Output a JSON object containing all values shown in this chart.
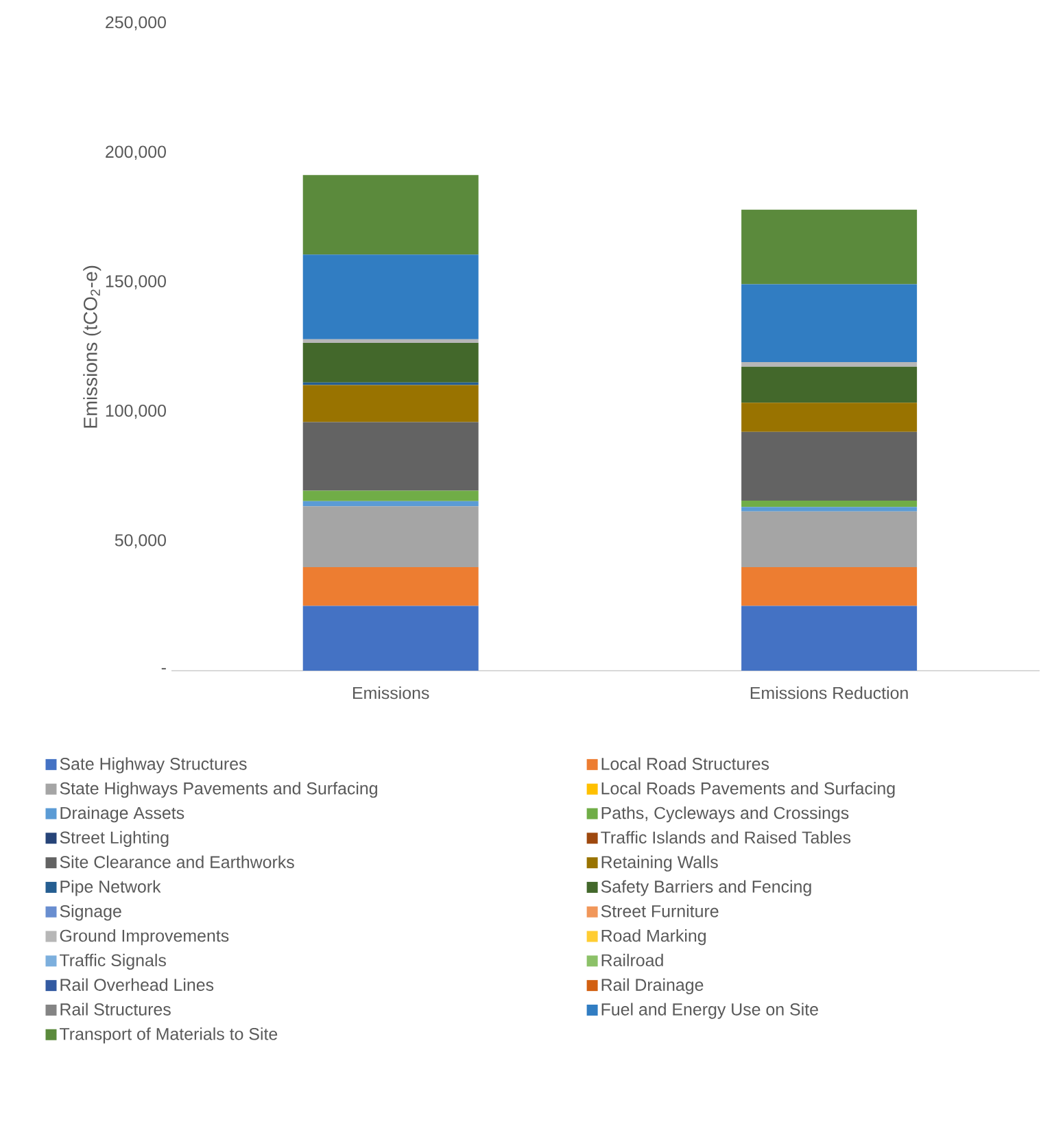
{
  "chart_data": {
    "type": "bar",
    "stacked": true,
    "ylabel": "Emissions (tCO$_{2}$-e)",
    "categories": [
      "Emissions",
      "Emissions Reduction"
    ],
    "ylim": [
      0,
      250000
    ],
    "yticks": [
      {
        "value": 0,
        "label": "-"
      },
      {
        "value": 50000,
        "label": "50,000"
      },
      {
        "value": 100000,
        "label": "100,000"
      },
      {
        "value": 150000,
        "label": "150,000"
      },
      {
        "value": 200000,
        "label": "200,000"
      },
      {
        "value": 250000,
        "label": "250,000"
      }
    ],
    "legend": "bottom",
    "series": [
      {
        "name": "Sate Highway Structures",
        "color": "#4472c4",
        "values": [
          25000,
          25000
        ]
      },
      {
        "name": "Local Road Structures",
        "color": "#ed7d31",
        "values": [
          15000,
          15000
        ]
      },
      {
        "name": "State Highways Pavements and Surfacing",
        "color": "#a5a5a5",
        "values": [
          23500,
          21500
        ]
      },
      {
        "name": "Local Roads Pavements and Surfacing",
        "color": "#ffc000",
        "values": [
          0,
          0
        ]
      },
      {
        "name": "Drainage Assets",
        "color": "#5b9bd5",
        "values": [
          2000,
          1700
        ]
      },
      {
        "name": "Paths, Cycleways and Crossings",
        "color": "#70ad47",
        "values": [
          4000,
          2500
        ]
      },
      {
        "name": "Street Lighting",
        "color": "#264478",
        "values": [
          0,
          0
        ]
      },
      {
        "name": "Traffic Islands and Raised Tables",
        "color": "#9e480e",
        "values": [
          0,
          0
        ]
      },
      {
        "name": "Site Clearance and Earthworks",
        "color": "#636363",
        "values": [
          26500,
          26500
        ]
      },
      {
        "name": "Retaining Walls",
        "color": "#997300",
        "values": [
          14300,
          11300
        ]
      },
      {
        "name": "Pipe Network",
        "color": "#255e91",
        "values": [
          1000,
          0
        ]
      },
      {
        "name": "Safety Barriers and Fencing",
        "color": "#43682b",
        "values": [
          15300,
          13900
        ]
      },
      {
        "name": "Signage",
        "color": "#698ed0",
        "values": [
          0,
          0
        ]
      },
      {
        "name": "Street Furniture",
        "color": "#f1975a",
        "values": [
          0,
          0
        ]
      },
      {
        "name": "Ground Improvements",
        "color": "#b7b7b7",
        "values": [
          1400,
          1800
        ]
      },
      {
        "name": "Road Marking",
        "color": "#ffcd33",
        "values": [
          0,
          0
        ]
      },
      {
        "name": "Traffic Signals",
        "color": "#7cafdd",
        "values": [
          0,
          0
        ]
      },
      {
        "name": "Railroad",
        "color": "#8cc168",
        "values": [
          0,
          0
        ]
      },
      {
        "name": "Rail Overhead Lines",
        "color": "#335aa1",
        "values": [
          0,
          0
        ]
      },
      {
        "name": "Rail Drainage",
        "color": "#d26012",
        "values": [
          0,
          0
        ]
      },
      {
        "name": "Rail Structures",
        "color": "#848484",
        "values": [
          0,
          0
        ]
      },
      {
        "name": "Fuel and Energy Use on Site",
        "color": "#317dc2",
        "values": [
          32700,
          30000
        ]
      },
      {
        "name": "Transport of Materials to Site",
        "color": "#5b8a3c",
        "values": [
          30700,
          28800
        ]
      }
    ]
  }
}
